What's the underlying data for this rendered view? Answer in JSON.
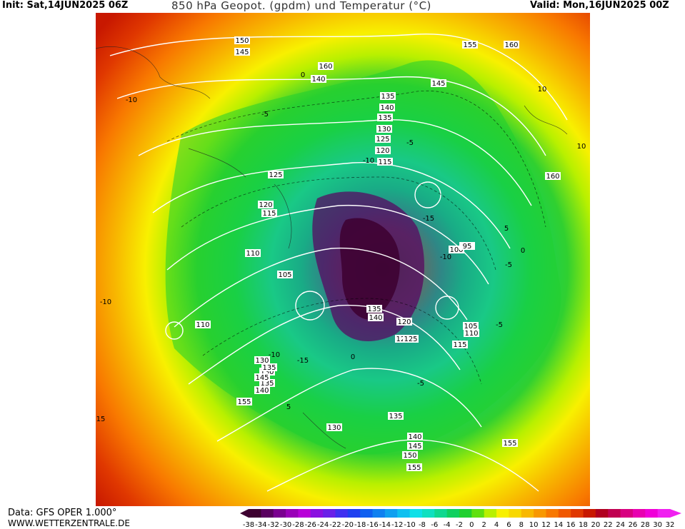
{
  "header": {
    "init": "Init: Sat,14JUN2025 06Z",
    "title": "850 hPa Geopot. (gpdm) und Temperatur (°C)",
    "valid": "Valid: Mon,16JUN2025 00Z"
  },
  "footer": {
    "data_source": "Data: GFS OPER 1.000°",
    "website": "WWW.WETTERZENTRALE.DE"
  },
  "colorbar": {
    "ticks": [
      "-38",
      "-34",
      "-32",
      "-30",
      "-28",
      "-26",
      "-24",
      "-22",
      "-20",
      "-18",
      "-16",
      "-14",
      "-12",
      "-10",
      "-8",
      "-6",
      "-4",
      "-2",
      "0",
      "2",
      "4",
      "6",
      "8",
      "10",
      "12",
      "14",
      "16",
      "18",
      "20",
      "22",
      "24",
      "26",
      "28",
      "30",
      "32"
    ],
    "colors": [
      "#3d0030",
      "#5a0060",
      "#7a0090",
      "#9a00b8",
      "#b800d8",
      "#8a10e0",
      "#6a20e8",
      "#4030f0",
      "#2040f0",
      "#1060f0",
      "#1080f0",
      "#10a0f0",
      "#10c0f0",
      "#10e0e8",
      "#10e0c0",
      "#10d890",
      "#10d060",
      "#20d030",
      "#60e010",
      "#b8f000",
      "#f8f000",
      "#f8d800",
      "#f8b800",
      "#f89800",
      "#f87800",
      "#f05800",
      "#e03800",
      "#c81800",
      "#b00020",
      "#c00050",
      "#d80080",
      "#e800b0",
      "#f000d8",
      "#f020f0"
    ]
  },
  "map": {
    "contour_labels": [
      "150",
      "145",
      "160",
      "155",
      "140",
      "135",
      "145",
      "140",
      "135",
      "130",
      "125",
      "120",
      "115",
      "110",
      "125",
      "115",
      "120",
      "110",
      "105",
      "135",
      "140",
      "125",
      "130",
      "135",
      "145",
      "155",
      "130",
      "135",
      "140",
      "145",
      "150",
      "155",
      "160",
      "155",
      "100",
      "95",
      "105",
      "110",
      "115",
      "120",
      "125",
      "130",
      "135",
      "140",
      "160"
    ],
    "temp_labels": [
      "-10",
      "-5",
      "0",
      "-15",
      "-10",
      "-5",
      "0",
      "5",
      "-5",
      "-10",
      "-15",
      "-10",
      "-5",
      "0",
      "5",
      "10",
      "15",
      "-10",
      "-5",
      "10"
    ]
  }
}
